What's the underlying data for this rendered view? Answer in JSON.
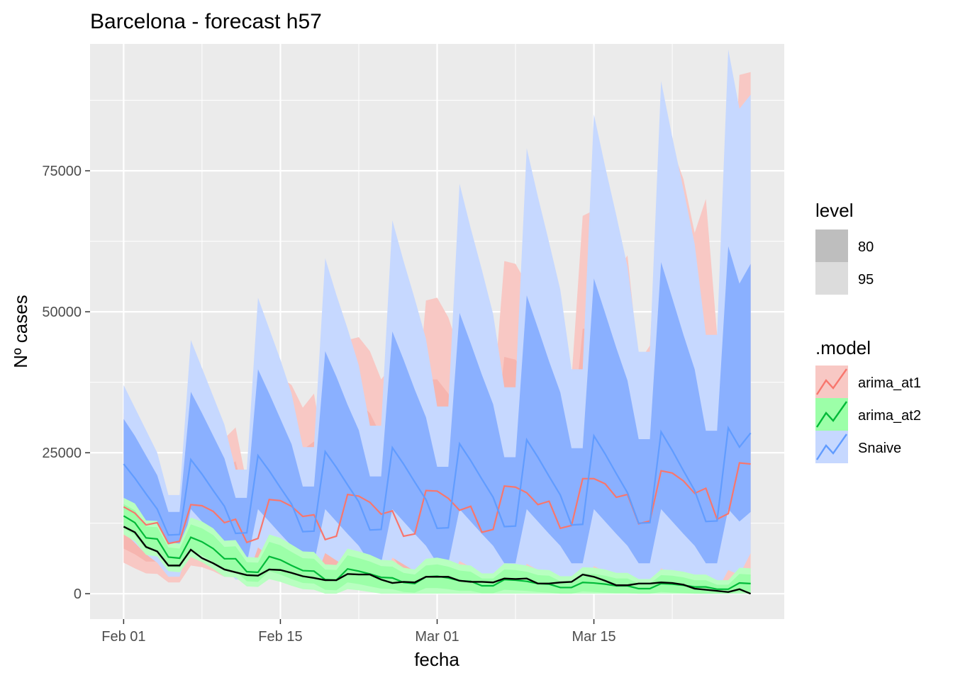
{
  "chart_data": {
    "type": "line",
    "title": "Barcelona - forecast h57",
    "xlabel": "fecha",
    "ylabel": "Nº cases",
    "x_ticks": [
      "Feb 01",
      "Feb 15",
      "Mar 01",
      "Mar 15"
    ],
    "y_ticks": [
      0,
      25000,
      50000,
      75000
    ],
    "xlim": [
      "2022-01-29",
      "2022-04-01"
    ],
    "ylim": [
      -4500,
      97500
    ],
    "x_start": "2022-02-01",
    "grid": true,
    "legend": {
      "level_title": "level",
      "levels": [
        "80",
        "95"
      ],
      "model_title": ".model",
      "models": [
        "arima_at1",
        "arima_at2",
        "Snaive"
      ],
      "placement": "right"
    },
    "colors": {
      "arima_at1": "#F8766D",
      "arima_at2": "#00BA38",
      "Snaive": "#619CFF",
      "arima_at1_band": "#F8C8C4",
      "arima_at2_band": "#9CFFA8",
      "Snaive_band95": "#C6D8FF",
      "Snaive_band80": "#8AB0FF",
      "actual": "#000000"
    },
    "series": [
      {
        "name": "arima_at1",
        "values": [
          15400,
          14300,
          12200,
          12600,
          8900,
          9300,
          15800,
          15600,
          14600,
          12600,
          13200,
          9100,
          9800,
          16700,
          16500,
          15500,
          13700,
          14000,
          9600,
          10200,
          17600,
          17300,
          16200,
          14100,
          14700,
          10200,
          10600,
          18300,
          18200,
          16900,
          14800,
          15500,
          10900,
          11400,
          19100,
          18900,
          17900,
          15800,
          16400,
          11600,
          12100,
          20400,
          20400,
          19500,
          17100,
          17600,
          12400,
          12900,
          21800,
          21400,
          20000,
          17800,
          18700,
          13200,
          14200,
          23200,
          23000
        ],
        "lower80": [
          8000,
          7000,
          5700,
          5700,
          3600,
          3600,
          8700,
          8300,
          7400,
          5800,
          5900,
          3300,
          3400,
          8400,
          8100,
          7500,
          6500,
          6500,
          3700,
          3700,
          8800,
          8600,
          7700,
          6600,
          6600,
          3800,
          3800,
          9000,
          8700,
          7800,
          6800,
          6800,
          3900,
          3900,
          9200,
          8900,
          8000,
          6900,
          6900,
          4000,
          4000,
          9300,
          9000,
          8100,
          7000,
          7000,
          4100,
          4100,
          9400,
          9100,
          8200,
          7100,
          7100,
          4200,
          4200,
          9600,
          9500
        ],
        "upper80": [
          27000,
          24000,
          21000,
          20000,
          14000,
          14500,
          26000,
          27000,
          25500,
          22000,
          23500,
          15500,
          16500,
          30000,
          30000,
          28000,
          25500,
          27000,
          18000,
          20000,
          34000,
          34000,
          32000,
          28000,
          30000,
          20000,
          21000,
          38000,
          38000,
          35500,
          31000,
          33500,
          22500,
          24000,
          42000,
          41500,
          39000,
          34500,
          37000,
          25000,
          26500,
          47000,
          47000,
          45000,
          39000,
          41000,
          28000,
          29500,
          53000,
          52000,
          48500,
          42500,
          46000,
          31000,
          33500,
          59000,
          58500
        ],
        "lower95": [
          5500,
          4500,
          3600,
          3500,
          2000,
          2000,
          5000,
          4700,
          4000,
          3000,
          3000,
          1500,
          1500,
          4200,
          4000,
          3600,
          3000,
          3000,
          1500,
          1500,
          4000,
          3900,
          3400,
          2800,
          2800,
          1400,
          1400,
          3800,
          3700,
          3200,
          2700,
          2700,
          1300,
          1300,
          3600,
          3500,
          3100,
          2600,
          2600,
          1300,
          1300,
          3500,
          3400,
          3000,
          2500,
          2500,
          1200,
          1200,
          3400,
          3300,
          2900,
          2400,
          2400,
          1200,
          1200,
          3300,
          3200
        ],
        "upper95": [
          32000,
          29000,
          25500,
          24500,
          17000,
          17500,
          31000,
          32500,
          31000,
          27500,
          29500,
          19500,
          21000,
          38000,
          38500,
          37000,
          33000,
          35500,
          24000,
          26500,
          45000,
          45500,
          43000,
          38000,
          40500,
          27000,
          29000,
          52000,
          52500,
          49000,
          43000,
          46500,
          31500,
          34000,
          59000,
          58500,
          55000,
          48500,
          52500,
          35500,
          38000,
          67000,
          68000,
          65000,
          57000,
          60000,
          41000,
          44000,
          79000,
          79000,
          73500,
          64000,
          70000,
          46000,
          52000,
          92000,
          92500
        ]
      },
      {
        "name": "arima_at2",
        "values": [
          13800,
          12600,
          9900,
          9700,
          6500,
          6300,
          10000,
          9200,
          8000,
          6200,
          6200,
          3900,
          3800,
          6600,
          6000,
          5000,
          4100,
          4000,
          2500,
          2400,
          4400,
          4000,
          3500,
          2900,
          2800,
          2000,
          1800,
          3000,
          3100,
          2800,
          2300,
          2200,
          1400,
          1400,
          2500,
          2400,
          2200,
          1800,
          1700,
          1100,
          1100,
          2000,
          1900,
          1700,
          1400,
          1400,
          900,
          900,
          1800,
          1700,
          1500,
          1200,
          1200,
          800,
          800,
          1900,
          1800
        ],
        "lower80": [
          11600,
          10400,
          7900,
          7600,
          4800,
          4600,
          7700,
          6800,
          5600,
          4100,
          4000,
          2200,
          2100,
          4000,
          3400,
          2600,
          1900,
          1800,
          700,
          600,
          2000,
          1700,
          1300,
          900,
          800,
          300,
          200,
          1000,
          1000,
          800,
          500,
          500,
          100,
          100,
          700,
          600,
          500,
          300,
          200,
          0,
          0,
          400,
          300,
          200,
          100,
          100,
          0,
          0,
          300,
          200,
          100,
          0,
          0,
          0,
          0,
          300,
          200
        ],
        "upper80": [
          15900,
          14800,
          11900,
          11800,
          8200,
          8000,
          12300,
          11600,
          10400,
          8300,
          8400,
          5600,
          5500,
          9200,
          8600,
          7400,
          6300,
          6200,
          4300,
          4200,
          6800,
          6300,
          5700,
          4900,
          4800,
          3700,
          3400,
          5000,
          5200,
          4800,
          4100,
          3900,
          2700,
          2700,
          4300,
          4200,
          3900,
          3300,
          3200,
          2200,
          2200,
          3600,
          3500,
          3200,
          2700,
          2700,
          1800,
          1800,
          3300,
          3200,
          2900,
          2400,
          2400,
          1600,
          1600,
          3500,
          3400
        ],
        "lower95": [
          10500,
          9300,
          6900,
          6600,
          4000,
          3800,
          6500,
          5600,
          4400,
          3000,
          2900,
          1300,
          1200,
          2600,
          2100,
          1400,
          800,
          700,
          0,
          0,
          800,
          600,
          300,
          0,
          0,
          0,
          0,
          0,
          0,
          0,
          0,
          0,
          0,
          0,
          0,
          0,
          0,
          0,
          0,
          0,
          0,
          0,
          0,
          0,
          0,
          0,
          0,
          0,
          0,
          0,
          0,
          0,
          0,
          0,
          0,
          0,
          0
        ],
        "upper95": [
          17000,
          16000,
          13000,
          12900,
          9100,
          8900,
          13500,
          12800,
          11600,
          9400,
          9500,
          6500,
          6400,
          10500,
          9900,
          8700,
          7500,
          7400,
          5200,
          5100,
          8000,
          7500,
          6900,
          6000,
          5900,
          4600,
          4300,
          6200,
          6400,
          6000,
          5200,
          5000,
          3600,
          3600,
          5400,
          5300,
          5000,
          4300,
          4200,
          3100,
          3100,
          4700,
          4600,
          4300,
          3700,
          3700,
          2600,
          2600,
          4300,
          4200,
          3900,
          3400,
          3400,
          2400,
          2400,
          4600,
          4500
        ]
      },
      {
        "name": "Snaive",
        "values": [
          23000,
          20500,
          17700,
          15000,
          10400,
          10500,
          23800,
          21200,
          18300,
          15500,
          10700,
          10800,
          24500,
          21800,
          18800,
          15900,
          11000,
          11100,
          25200,
          22400,
          19300,
          16300,
          11300,
          11400,
          25900,
          23000,
          19800,
          16700,
          11600,
          11700,
          26600,
          23600,
          20300,
          17100,
          11900,
          12000,
          27300,
          24200,
          20800,
          17500,
          12200,
          12300,
          28000,
          24800,
          21300,
          17900,
          12500,
          12600,
          28700,
          25400,
          21800,
          18300,
          12800,
          12900,
          29400,
          26000,
          28500
        ],
        "lower80": [
          15000,
          12800,
          10500,
          8500,
          5300,
          5300,
          15000,
          12800,
          10600,
          8500,
          5400,
          5400,
          15000,
          12800,
          10600,
          8500,
          5400,
          5400,
          15000,
          12800,
          10600,
          8500,
          5400,
          5400,
          15000,
          12800,
          10600,
          8500,
          5400,
          5400,
          15000,
          12800,
          10600,
          8500,
          5400,
          5400,
          15000,
          12800,
          10600,
          8500,
          5400,
          5400,
          15000,
          12800,
          10600,
          8500,
          5400,
          5400,
          15000,
          12800,
          10600,
          8500,
          5400,
          5400,
          15000,
          12800,
          14500
        ],
        "upper80": [
          31000,
          28000,
          24500,
          21000,
          14500,
          14500,
          35800,
          32000,
          28000,
          24000,
          17000,
          17000,
          39800,
          35500,
          31000,
          26500,
          19000,
          19000,
          43000,
          38500,
          33500,
          29000,
          20800,
          20800,
          46500,
          41500,
          36200,
          31300,
          22500,
          22500,
          49800,
          44400,
          38800,
          33600,
          24200,
          24200,
          52900,
          47100,
          41200,
          35700,
          25800,
          25800,
          55900,
          49800,
          43600,
          37800,
          27400,
          27400,
          58800,
          52400,
          45900,
          39800,
          28900,
          28900,
          61600,
          55000,
          58500
        ],
        "lower95": [
          11000,
          9000,
          7000,
          5500,
          3000,
          3000,
          9500,
          7800,
          6200,
          4800,
          2500,
          2500,
          8200,
          6700,
          5300,
          4000,
          2000,
          2000,
          7200,
          5900,
          4600,
          3500,
          1600,
          1600,
          6400,
          5200,
          4000,
          3000,
          1300,
          1300,
          5800,
          4700,
          3600,
          2600,
          1000,
          1000,
          5300,
          4200,
          3200,
          2300,
          800,
          800,
          4900,
          3900,
          2900,
          2000,
          600,
          600,
          4500,
          3600,
          2700,
          1800,
          500,
          500,
          4200,
          3300,
          7200
        ],
        "upper95": [
          37000,
          33000,
          29000,
          25000,
          17500,
          17500,
          45000,
          40000,
          35000,
          30000,
          22000,
          22000,
          52500,
          47000,
          41500,
          35500,
          26000,
          26000,
          59500,
          53000,
          47000,
          40500,
          29800,
          29800,
          66200,
          59000,
          52300,
          45200,
          33200,
          33200,
          72700,
          64800,
          57400,
          49600,
          36600,
          36600,
          79000,
          70400,
          62300,
          53900,
          39800,
          39800,
          85000,
          75800,
          67100,
          58000,
          42900,
          42900,
          90900,
          81000,
          71700,
          62000,
          45900,
          45900,
          96500,
          86000,
          88500
        ]
      },
      {
        "name": "actual",
        "values": [
          11900,
          10900,
          8300,
          7500,
          5000,
          5000,
          7800,
          6300,
          5400,
          4300,
          3800,
          3300,
          3200,
          4300,
          4200,
          3700,
          3100,
          2800,
          2400,
          2400,
          3500,
          3400,
          3400,
          2500,
          1900,
          2100,
          2000,
          3000,
          3000,
          3000,
          2300,
          2100,
          2100,
          2000,
          2700,
          2600,
          2700,
          1800,
          1800,
          2000,
          2100,
          3400,
          3000,
          2300,
          1500,
          1500,
          1800,
          1800,
          2000,
          1900,
          1600,
          900,
          700,
          500,
          300,
          800,
          0
        ]
      }
    ]
  }
}
